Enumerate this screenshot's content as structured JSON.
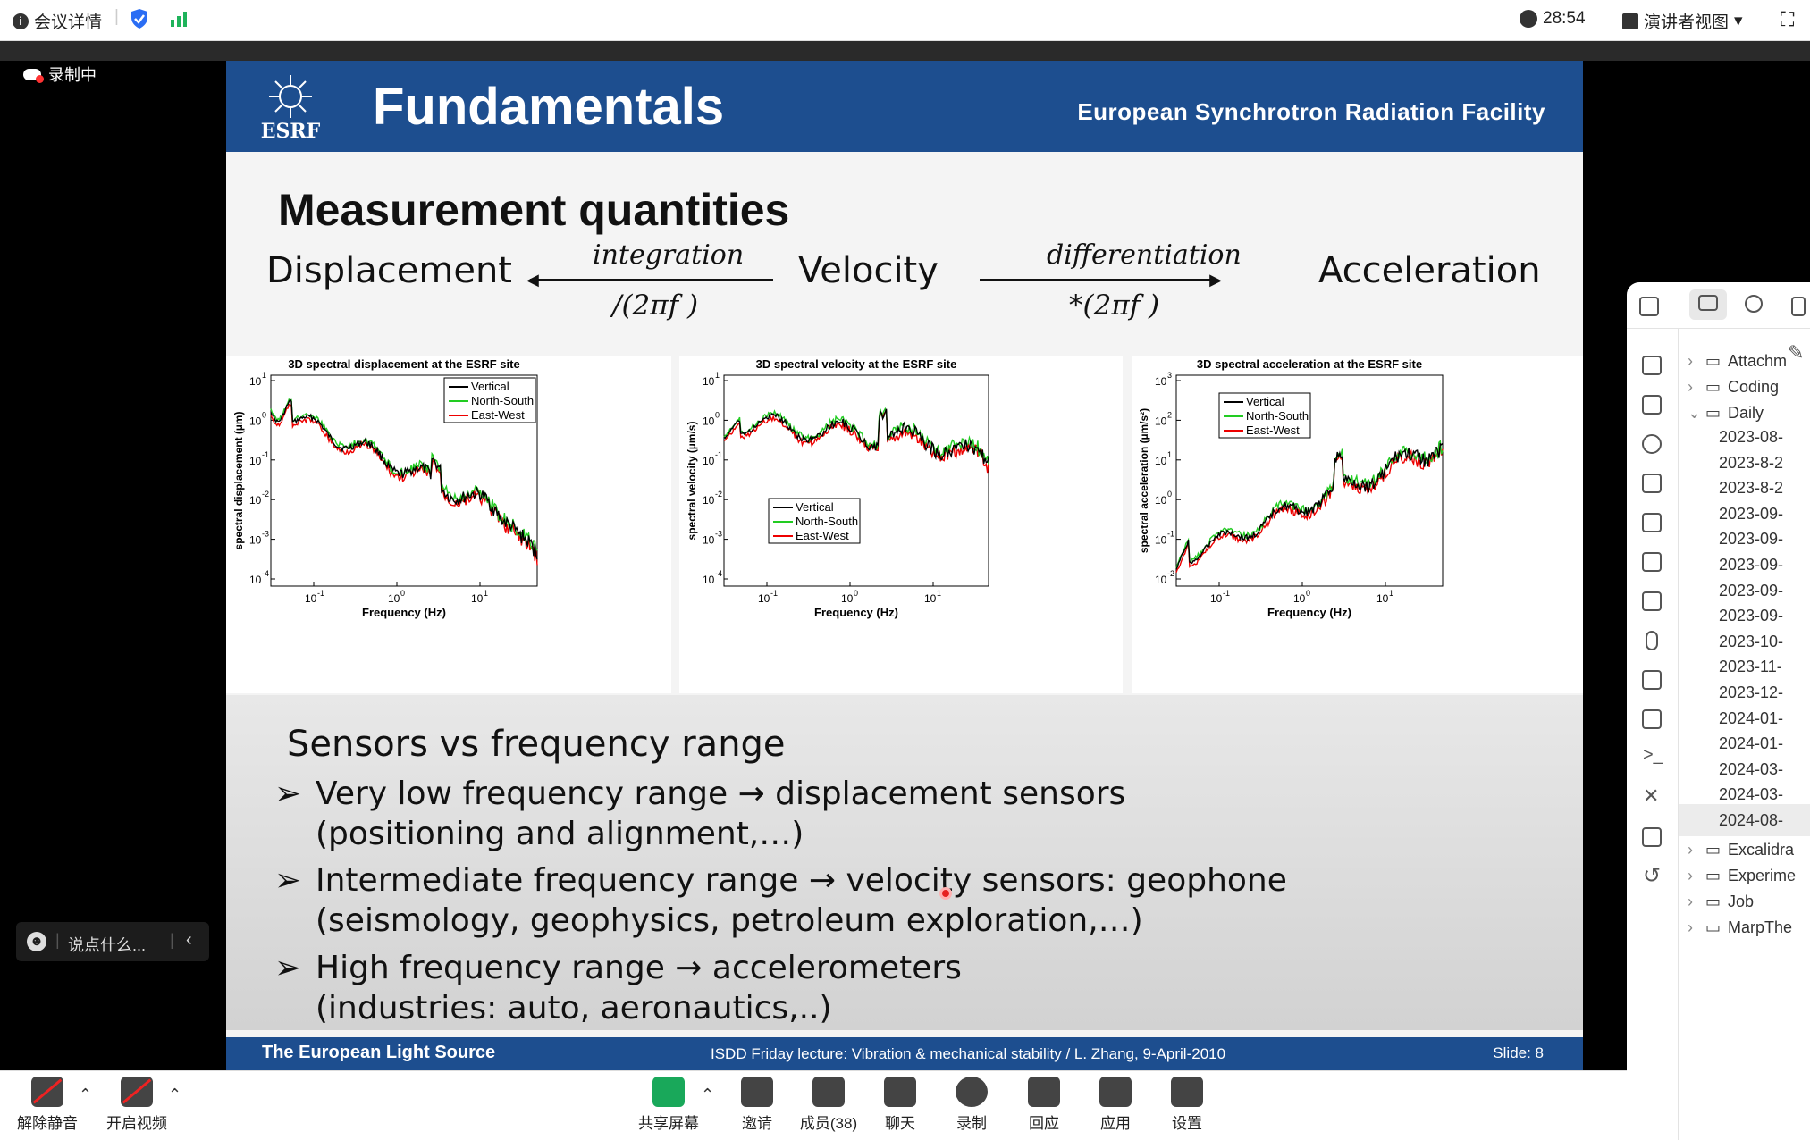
{
  "topbar": {
    "meeting_info": "会议详情",
    "timer": "28:54",
    "view_mode": "演讲者视图"
  },
  "recording": "录制中",
  "slide": {
    "title": "Fundamentals",
    "org": "European Synchrotron Radiation Facility",
    "logo_text": "ESRF",
    "heading": "Measurement quantities",
    "q_displacement": "Displacement",
    "q_velocity": "Velocity",
    "q_acceleration": "Acceleration",
    "op_integration": "integration",
    "op_div": "/(2πf )",
    "op_differentiation": "differentiation",
    "op_mul": "*(2πf )",
    "sensors_title": "Sensors vs frequency range",
    "bullets": [
      {
        "l1": "Very low frequency range → displacement sensors",
        "l2": "(positioning and alignment,…)"
      },
      {
        "l1": "Intermediate frequency range → velocity sensors: geophone",
        "l2": "(seismology, geophysics, petroleum exploration,…)"
      },
      {
        "l1": "High frequency range → accelerometers",
        "l2": "(industries: auto, aeronautics,..)"
      }
    ],
    "footer_left": "The European Light Source",
    "footer_mid": "ISDD Friday lecture: Vibration & mechanical stability / L. Zhang,  9-April-2010",
    "footer_right": "Slide: 8"
  },
  "plots": [
    {
      "title": "3D spectral displacement at the ESRF site",
      "ylabel": "spectral displacement (µm)",
      "xlabel": "Frequency  (Hz)",
      "yticks": [
        "10",
        "10",
        "10",
        "10",
        "10",
        "10"
      ],
      "yexp": [
        "1",
        "0",
        "-1",
        "-2",
        "-3",
        "-4"
      ],
      "xticks": [
        "10",
        "10",
        "10"
      ],
      "xexp": [
        "-1",
        "0",
        "1"
      ]
    },
    {
      "title": "3D spectral velocity at the ESRF site",
      "ylabel": "spectral velocity (µm/s)",
      "xlabel": "Frequency  (Hz)",
      "yticks": [
        "10",
        "10",
        "10",
        "10",
        "10",
        "10"
      ],
      "yexp": [
        "1",
        "0",
        "-1",
        "-2",
        "-3",
        "-4"
      ],
      "xticks": [
        "10",
        "10",
        "10"
      ],
      "xexp": [
        "-1",
        "0",
        "1"
      ]
    },
    {
      "title": "3D spectral acceleration at the ESRF site",
      "ylabel": "spectral acceleration (µm/s²)",
      "xlabel": "Frequency  (Hz)",
      "yticks": [
        "10",
        "10",
        "10",
        "10",
        "10",
        "10"
      ],
      "yexp": [
        "3",
        "2",
        "1",
        "0",
        "-1",
        "-2"
      ],
      "xticks": [
        "10",
        "10",
        "10"
      ],
      "xexp": [
        "-1",
        "0",
        "1"
      ]
    }
  ],
  "legend": [
    "Vertical",
    "North-South",
    "East-West"
  ],
  "series_colors": [
    "#000000",
    "#22cc22",
    "#ee0000"
  ],
  "chat": {
    "placeholder": "说点什么..."
  },
  "sidebar": {
    "folders": [
      {
        "label": "Attachm",
        "expanded": false
      },
      {
        "label": "Coding",
        "expanded": false
      },
      {
        "label": "Daily",
        "expanded": true
      }
    ],
    "daily_items": [
      "2023-08-",
      "2023-8-2",
      "2023-8-2",
      "2023-09-",
      "2023-09-",
      "2023-09-",
      "2023-09-",
      "2023-09-",
      "2023-10-",
      "2023-11-",
      "2023-12-",
      "2024-01-",
      "2024-01-",
      "2024-03-",
      "2024-03-",
      "2024-08-"
    ],
    "more_folders": [
      "Excalidra",
      "Experime",
      "Job",
      "MarpThe"
    ]
  },
  "bottombar": [
    {
      "label": "解除静音",
      "icon": "mic-muted-icon"
    },
    {
      "label": "开启视频",
      "icon": "camera-off-icon"
    },
    {
      "label": "共享屏幕",
      "icon": "share-screen-icon"
    },
    {
      "label": "邀请",
      "icon": "invite-icon"
    },
    {
      "label": "成员(38)",
      "icon": "members-icon"
    },
    {
      "label": "聊天",
      "icon": "chat-icon"
    },
    {
      "label": "录制",
      "icon": "record-icon"
    },
    {
      "label": "回应",
      "icon": "reaction-icon"
    },
    {
      "label": "应用",
      "icon": "apps-icon"
    },
    {
      "label": "设置",
      "icon": "settings-icon"
    }
  ]
}
